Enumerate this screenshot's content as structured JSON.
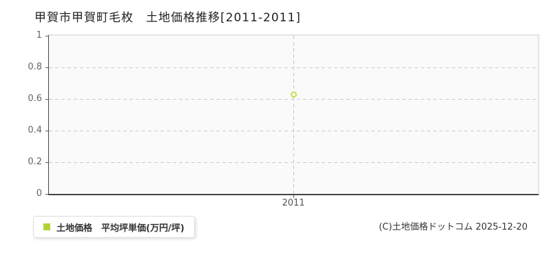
{
  "title": "甲賀市甲賀町毛枚　土地価格推移[2011-2011]",
  "legend": {
    "label": "土地価格　平均坪単価(万円/坪)",
    "marker_color": "#b2d235"
  },
  "footer": {
    "copyright": "(C)土地価格ドットコム 2025-12-20"
  },
  "colors": {
    "point_stroke": "#ccd94f",
    "grid": "#c9c9c9",
    "axis_dark": "#444444",
    "axis_light": "#e3e3e3",
    "plot_background": "#fafafa",
    "tick_label": "#666666"
  },
  "chart_data": {
    "type": "line",
    "x": [
      2011
    ],
    "xtick_labels": [
      "2011"
    ],
    "series": [
      {
        "name": "土地価格 平均坪単価(万円/坪)",
        "values": [
          0.63
        ]
      }
    ],
    "title": "甲賀市甲賀町毛枚 土地価格推移[2011-2011]",
    "xlabel": "",
    "ylabel": "",
    "ylim": [
      0,
      1
    ],
    "yticks": [
      0,
      0.2,
      0.4,
      0.6,
      0.8,
      1
    ],
    "grid": true,
    "legend_position": "bottom-left",
    "unit": "万円/坪"
  }
}
